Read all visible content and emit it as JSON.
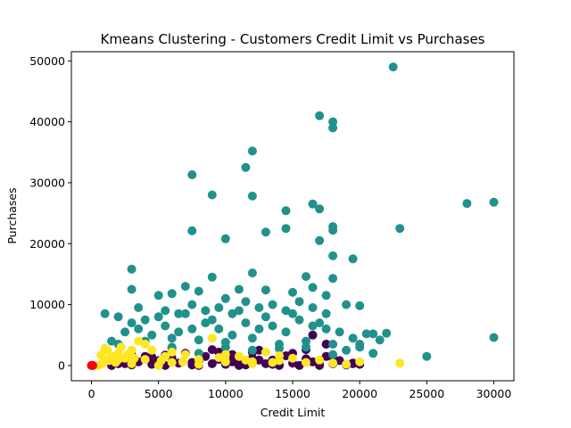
{
  "chart_data": {
    "type": "scatter",
    "title": "Kmeans Clustering - Customers Credit Limit vs Purchases",
    "xlabel": "Credit Limit",
    "ylabel": "Purchases",
    "xlim": [
      -1500,
      31500
    ],
    "ylim": [
      -2500,
      51500
    ],
    "xticks": [
      0,
      5000,
      10000,
      15000,
      20000,
      25000,
      30000
    ],
    "yticks": [
      0,
      10000,
      20000,
      30000,
      40000,
      50000
    ],
    "xtick_labels": [
      "0",
      "5000",
      "10000",
      "15000",
      "20000",
      "25000",
      "30000"
    ],
    "ytick_labels": [
      "0",
      "10000",
      "20000",
      "30000",
      "40000",
      "50000"
    ],
    "grid": false,
    "legend": "none",
    "series": [
      {
        "color": "#440154",
        "points": [
          [
            1500,
            0
          ],
          [
            2000,
            300
          ],
          [
            2500,
            900
          ],
          [
            3000,
            100
          ],
          [
            3500,
            600
          ],
          [
            4000,
            1500
          ],
          [
            4500,
            200
          ],
          [
            5000,
            800
          ],
          [
            5500,
            0
          ],
          [
            6000,
            1200
          ],
          [
            6500,
            400
          ],
          [
            7000,
            2000
          ],
          [
            7500,
            100
          ],
          [
            8000,
            700
          ],
          [
            8500,
            1500
          ],
          [
            9000,
            300
          ],
          [
            9500,
            1000
          ],
          [
            10000,
            200
          ],
          [
            10500,
            1800
          ],
          [
            11000,
            500
          ],
          [
            11500,
            100
          ],
          [
            12000,
            1200
          ],
          [
            12500,
            2500
          ],
          [
            13000,
            300
          ],
          [
            13500,
            900
          ],
          [
            14000,
            100
          ],
          [
            14500,
            1600
          ],
          [
            15000,
            400
          ],
          [
            15500,
            0
          ],
          [
            16000,
            1100
          ],
          [
            16500,
            600
          ],
          [
            17000,
            200
          ],
          [
            17500,
            1500
          ],
          [
            18000,
            300
          ],
          [
            18500,
            800
          ],
          [
            19000,
            100
          ],
          [
            19500,
            400
          ],
          [
            20000,
            200
          ],
          [
            3000,
            1800
          ],
          [
            6000,
            2800
          ],
          [
            9000,
            2600
          ],
          [
            12000,
            2200
          ],
          [
            15000,
            2000
          ],
          [
            16500,
            5000
          ],
          [
            17500,
            3500
          ],
          [
            4500,
            1400
          ],
          [
            7500,
            500
          ],
          [
            10500,
            600
          ],
          [
            13500,
            200
          ],
          [
            8000,
            0
          ],
          [
            11000,
            0
          ],
          [
            14000,
            0
          ],
          [
            17000,
            0
          ],
          [
            18000,
            1200
          ],
          [
            2500,
            300
          ],
          [
            5500,
            1700
          ],
          [
            9500,
            2200
          ],
          [
            12500,
            900
          ],
          [
            16000,
            2600
          ],
          [
            19500,
            300
          ]
        ]
      },
      {
        "color": "#21918c",
        "points": [
          [
            22500,
            49000
          ],
          [
            17000,
            41000
          ],
          [
            18000,
            40000
          ],
          [
            18000,
            39000
          ],
          [
            12000,
            35200
          ],
          [
            11500,
            32500
          ],
          [
            7500,
            31300
          ],
          [
            9000,
            28000
          ],
          [
            12000,
            27800
          ],
          [
            28000,
            26600
          ],
          [
            30000,
            26800
          ],
          [
            16500,
            26500
          ],
          [
            17000,
            25700
          ],
          [
            14500,
            25400
          ],
          [
            18000,
            22800
          ],
          [
            18000,
            22200
          ],
          [
            23000,
            22500
          ],
          [
            7500,
            22100
          ],
          [
            13000,
            21900
          ],
          [
            14500,
            22500
          ],
          [
            10000,
            20800
          ],
          [
            17000,
            20500
          ],
          [
            18000,
            18000
          ],
          [
            19500,
            17500
          ],
          [
            3000,
            15800
          ],
          [
            9000,
            14500
          ],
          [
            12000,
            15200
          ],
          [
            16000,
            14600
          ],
          [
            18000,
            14300
          ],
          [
            3000,
            12500
          ],
          [
            5000,
            11500
          ],
          [
            6000,
            11800
          ],
          [
            7000,
            13000
          ],
          [
            8000,
            12200
          ],
          [
            10000,
            11000
          ],
          [
            11000,
            12500
          ],
          [
            13000,
            12400
          ],
          [
            15000,
            12000
          ],
          [
            16500,
            12800
          ],
          [
            17500,
            11500
          ],
          [
            2000,
            8000
          ],
          [
            3500,
            9500
          ],
          [
            4000,
            7500
          ],
          [
            5500,
            9000
          ],
          [
            6500,
            8500
          ],
          [
            7500,
            10000
          ],
          [
            8500,
            9000
          ],
          [
            9500,
            9500
          ],
          [
            10500,
            8500
          ],
          [
            11500,
            10500
          ],
          [
            12500,
            9500
          ],
          [
            13500,
            10000
          ],
          [
            14500,
            9000
          ],
          [
            15500,
            10500
          ],
          [
            16500,
            9500
          ],
          [
            17500,
            8500
          ],
          [
            19000,
            10000
          ],
          [
            20000,
            9800
          ],
          [
            1000,
            8500
          ],
          [
            3000,
            7000
          ],
          [
            1500,
            4000
          ],
          [
            2500,
            5500
          ],
          [
            3500,
            6000
          ],
          [
            4500,
            5000
          ],
          [
            5500,
            6500
          ],
          [
            6500,
            5500
          ],
          [
            7500,
            6000
          ],
          [
            8500,
            7000
          ],
          [
            9500,
            6000
          ],
          [
            10500,
            5000
          ],
          [
            11500,
            7000
          ],
          [
            12500,
            6000
          ],
          [
            13500,
            6500
          ],
          [
            14500,
            5500
          ],
          [
            15500,
            7500
          ],
          [
            16500,
            6500
          ],
          [
            17500,
            6000
          ],
          [
            18500,
            5500
          ],
          [
            19500,
            4500
          ],
          [
            20500,
            5200
          ],
          [
            21000,
            5200
          ],
          [
            22000,
            5300
          ],
          [
            21500,
            4200
          ],
          [
            20000,
            3500
          ],
          [
            20000,
            3000
          ],
          [
            21000,
            2000
          ],
          [
            25000,
            1500
          ],
          [
            30000,
            4600
          ],
          [
            2000,
            3500
          ],
          [
            4000,
            4000
          ],
          [
            6000,
            4500
          ],
          [
            8000,
            4200
          ],
          [
            10000,
            3800
          ],
          [
            12000,
            4500
          ],
          [
            14000,
            3500
          ],
          [
            16000,
            4000
          ],
          [
            18000,
            3500
          ],
          [
            19000,
            2500
          ],
          [
            5000,
            8000
          ],
          [
            7000,
            8500
          ],
          [
            9000,
            7500
          ],
          [
            11000,
            9000
          ],
          [
            13000,
            8000
          ],
          [
            15000,
            8500
          ],
          [
            17000,
            7000
          ],
          [
            12000,
            2500
          ],
          [
            8000,
            2000
          ],
          [
            6000,
            3000
          ],
          [
            10000,
            3000
          ],
          [
            14000,
            2800
          ],
          [
            16000,
            3000
          ],
          [
            18000,
            1800
          ]
        ]
      },
      {
        "color": "#fde725",
        "points": [
          [
            500,
            0
          ],
          [
            800,
            300
          ],
          [
            1000,
            1000
          ],
          [
            1200,
            2500
          ],
          [
            1500,
            1500
          ],
          [
            1800,
            500
          ],
          [
            2000,
            2000
          ],
          [
            2200,
            3000
          ],
          [
            2500,
            1200
          ],
          [
            3000,
            2500
          ],
          [
            3500,
            4000
          ],
          [
            4000,
            1000
          ],
          [
            4500,
            2500
          ],
          [
            5000,
            0
          ],
          [
            5500,
            1500
          ],
          [
            6000,
            500
          ],
          [
            7000,
            1800
          ],
          [
            8000,
            1000
          ],
          [
            9000,
            4500
          ],
          [
            10000,
            600
          ],
          [
            11000,
            1500
          ],
          [
            12000,
            300
          ],
          [
            13000,
            2200
          ],
          [
            14000,
            800
          ],
          [
            15000,
            1200
          ],
          [
            16000,
            500
          ],
          [
            17000,
            900
          ],
          [
            18000,
            400
          ],
          [
            19000,
            200
          ],
          [
            20000,
            600
          ],
          [
            23000,
            400
          ],
          [
            1000,
            2800
          ],
          [
            2000,
            1000
          ],
          [
            3000,
            300
          ],
          [
            4000,
            3500
          ],
          [
            6000,
            2200
          ],
          [
            8000,
            200
          ],
          [
            10000,
            1800
          ],
          [
            12000,
            600
          ],
          [
            14000,
            1600
          ],
          [
            700,
            1700
          ],
          [
            1300,
            800
          ],
          [
            2700,
            1800
          ],
          [
            3200,
            1200
          ],
          [
            5200,
            800
          ],
          [
            6800,
            600
          ],
          [
            9500,
            1300
          ],
          [
            11500,
            900
          ],
          [
            13500,
            500
          ]
        ]
      },
      {
        "color": "#ff0000",
        "points": [
          [
            0,
            0
          ],
          [
            100,
            0
          ],
          [
            50,
            50
          ]
        ]
      }
    ]
  }
}
